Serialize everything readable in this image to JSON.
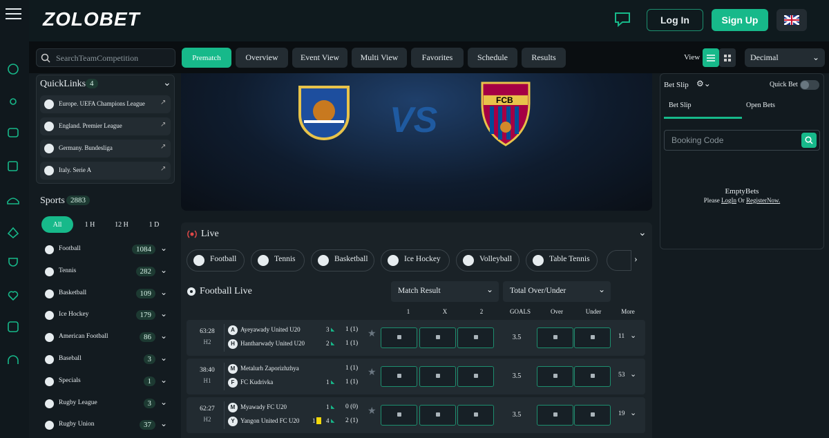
{
  "header": {
    "logo": "ZOLOBET",
    "login": "Log In",
    "signup": "Sign Up"
  },
  "toolbar": {
    "search": "SearchTeamCompetition",
    "tabs": [
      "Prematch",
      "Overview",
      "Event View",
      "Multi View",
      "Favorites",
      "Schedule",
      "Results"
    ],
    "view": "View",
    "odds_format": "Decimal"
  },
  "quicklinks": {
    "title": "QuickLinks",
    "count": 4,
    "items": [
      "Europe. UEFA Champions League",
      "England. Premier League",
      "Germany. Bundesliga",
      "Italy. Serie A"
    ]
  },
  "sports": {
    "title": "Sports",
    "count": 2883,
    "filters": [
      "All",
      "1 H",
      "12 H",
      "1 D"
    ],
    "items": [
      {
        "name": "Football",
        "count": 1084
      },
      {
        "name": "Tennis",
        "count": 282
      },
      {
        "name": "Basketball",
        "count": 109
      },
      {
        "name": "Ice Hockey",
        "count": 179
      },
      {
        "name": "American Football",
        "count": 86
      },
      {
        "name": "Baseball",
        "count": 3
      },
      {
        "name": "Specials",
        "count": 1
      },
      {
        "name": "Rugby League",
        "count": 3
      },
      {
        "name": "Rugby Union",
        "count": 37
      }
    ]
  },
  "banner": {
    "vs": "VS",
    "crest": "FCB"
  },
  "live": {
    "title": "Live",
    "sports": [
      "Football",
      "Tennis",
      "Basketball",
      "Ice Hockey",
      "Volleyball",
      "Table Tennis"
    ],
    "section": "Football Live",
    "markets": [
      "Match Result",
      "Total Over/Under"
    ],
    "columns": [
      "1",
      "X",
      "2",
      "GOALS",
      "Over",
      "Under",
      "More"
    ],
    "matches": [
      {
        "time": "63:28",
        "period": "H2",
        "teams": [
          {
            "badge": "A",
            "name": "Ayeyawady United U20",
            "corners": 3,
            "score": "1 (1)"
          },
          {
            "badge": "H",
            "name": "Hantharwady United U20",
            "corners": 2,
            "score": "1 (1)"
          }
        ],
        "goals": 3.5,
        "more": 11
      },
      {
        "time": "38:40",
        "period": "H1",
        "teams": [
          {
            "badge": "M",
            "name": "Metalurh Zaporizhzhya",
            "score": "1 (1)"
          },
          {
            "badge": "F",
            "name": "FC Kudrivka",
            "corners": 1,
            "score": "1 (1)"
          }
        ],
        "goals": 3.5,
        "more": 53
      },
      {
        "time": "62:27",
        "period": "H2",
        "teams": [
          {
            "badge": "M",
            "name": "Myawady FC U20",
            "corners": 1,
            "score": "0 (0)"
          },
          {
            "badge": "Y",
            "name": "Yangon United FC U20",
            "cards": 1,
            "corners": 4,
            "score": "2 (1)"
          }
        ],
        "goals": 3.5,
        "more": 19
      }
    ]
  },
  "betslip": {
    "title": "Bet Slip",
    "quick_bet": "Quick Bet",
    "tabs": [
      "Bet Slip",
      "Open Bets"
    ],
    "booking": "Booking Code",
    "empty": "EmptyBets",
    "please": "Please",
    "login": "LogIn",
    "or": "Or",
    "register": "RegisterNow."
  }
}
